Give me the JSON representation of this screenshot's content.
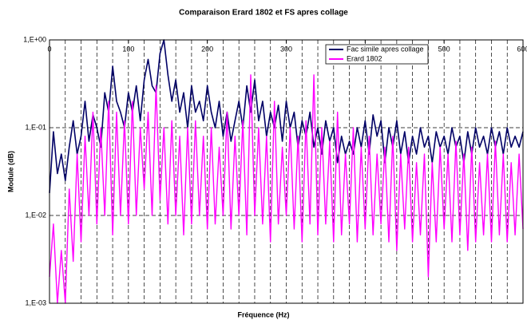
{
  "chart_data": {
    "type": "line",
    "title": "Comparaison Erard 1802 et FS apres collage",
    "x_label": "Fréquence (Hz)",
    "y_label": "Module (dB)",
    "log_y": true,
    "grid": true,
    "legend": "top-right",
    "xlim": [
      0,
      600
    ],
    "xticks": [
      0,
      100,
      200,
      300,
      400,
      500,
      600
    ],
    "xgrid": [
      0,
      20,
      40,
      60,
      80,
      100,
      120,
      140,
      160,
      180,
      200,
      220,
      240,
      260,
      280,
      300,
      320,
      340,
      360,
      380,
      400,
      420,
      440,
      460,
      480,
      500,
      520,
      540,
      560,
      580,
      600
    ],
    "ylim": [
      0.001,
      1
    ],
    "yticks": [
      {
        "value": 0.001,
        "label": "1,E-03"
      },
      {
        "value": 0.01,
        "label": "1,E-02"
      },
      {
        "value": 0.1,
        "label": "1,E-01"
      },
      {
        "value": 1,
        "label": "1,E+00"
      }
    ],
    "x": [
      0,
      5,
      10,
      15,
      20,
      25,
      30,
      35,
      40,
      45,
      50,
      55,
      60,
      65,
      70,
      75,
      80,
      85,
      90,
      95,
      100,
      105,
      110,
      115,
      120,
      125,
      130,
      135,
      140,
      145,
      150,
      155,
      160,
      165,
      170,
      175,
      180,
      185,
      190,
      195,
      200,
      205,
      210,
      215,
      220,
      225,
      230,
      235,
      240,
      245,
      250,
      255,
      260,
      265,
      270,
      275,
      280,
      285,
      290,
      295,
      300,
      305,
      310,
      315,
      320,
      325,
      330,
      335,
      340,
      345,
      350,
      355,
      360,
      365,
      370,
      375,
      380,
      385,
      390,
      395,
      400,
      405,
      410,
      415,
      420,
      425,
      430,
      435,
      440,
      445,
      450,
      455,
      460,
      465,
      470,
      475,
      480,
      485,
      490,
      495,
      500,
      505,
      510,
      515,
      520,
      525,
      530,
      535,
      540,
      545,
      550,
      555,
      560,
      565,
      570,
      575,
      580,
      585,
      590,
      595,
      600
    ],
    "series": [
      {
        "name": "Fac simile apres collage",
        "color": "#000066",
        "values": [
          0.018,
          0.09,
          0.03,
          0.05,
          0.025,
          0.06,
          0.12,
          0.05,
          0.08,
          0.2,
          0.07,
          0.14,
          0.1,
          0.06,
          0.25,
          0.15,
          0.5,
          0.2,
          0.15,
          0.1,
          0.25,
          0.15,
          0.3,
          0.12,
          0.35,
          0.6,
          0.3,
          0.25,
          0.7,
          1.0,
          0.4,
          0.2,
          0.35,
          0.15,
          0.25,
          0.1,
          0.3,
          0.15,
          0.2,
          0.12,
          0.3,
          0.15,
          0.1,
          0.2,
          0.08,
          0.15,
          0.07,
          0.12,
          0.2,
          0.1,
          0.3,
          0.15,
          0.35,
          0.12,
          0.2,
          0.08,
          0.15,
          0.1,
          0.18,
          0.07,
          0.2,
          0.1,
          0.15,
          0.06,
          0.12,
          0.08,
          0.15,
          0.06,
          0.1,
          0.05,
          0.12,
          0.07,
          0.1,
          0.04,
          0.08,
          0.05,
          0.07,
          0.05,
          0.1,
          0.06,
          0.12,
          0.05,
          0.14,
          0.08,
          0.12,
          0.04,
          0.1,
          0.06,
          0.12,
          0.05,
          0.09,
          0.04,
          0.08,
          0.05,
          0.1,
          0.06,
          0.08,
          0.04,
          0.09,
          0.06,
          0.08,
          0.05,
          0.1,
          0.06,
          0.08,
          0.04,
          0.09,
          0.05,
          0.1,
          0.06,
          0.08,
          0.05,
          0.1,
          0.06,
          0.09,
          0.05,
          0.1,
          0.06,
          0.08,
          0.06,
          0.09
        ]
      },
      {
        "name": "Erard 1802",
        "color": "#ff00ff",
        "values": [
          0.002,
          0.008,
          0.001,
          0.004,
          0.001,
          0.02,
          0.003,
          0.05,
          0.005,
          0.08,
          0.01,
          0.15,
          0.008,
          0.1,
          0.01,
          0.2,
          0.006,
          0.15,
          0.01,
          0.12,
          0.008,
          0.2,
          0.01,
          0.1,
          0.02,
          0.15,
          0.01,
          0.3,
          0.015,
          0.1,
          0.008,
          0.12,
          0.01,
          0.08,
          0.006,
          0.1,
          0.008,
          0.12,
          0.01,
          0.08,
          0.007,
          0.1,
          0.008,
          0.06,
          0.01,
          0.15,
          0.007,
          0.08,
          0.01,
          0.12,
          0.006,
          0.4,
          0.01,
          0.1,
          0.008,
          0.08,
          0.005,
          0.2,
          0.008,
          0.06,
          0.01,
          0.1,
          0.007,
          0.08,
          0.005,
          0.12,
          0.008,
          0.4,
          0.006,
          0.1,
          0.008,
          0.07,
          0.005,
          0.15,
          0.006,
          0.05,
          0.008,
          0.1,
          0.005,
          0.06,
          0.007,
          0.08,
          0.006,
          0.05,
          0.008,
          0.06,
          0.005,
          0.08,
          0.004,
          0.05,
          0.007,
          0.06,
          0.005,
          0.04,
          0.006,
          0.05,
          0.002,
          0.04,
          0.005,
          0.06,
          0.007,
          0.05,
          0.005,
          0.07,
          0.006,
          0.05,
          0.004,
          0.06,
          0.005,
          0.04,
          0.006,
          0.05,
          0.005,
          0.07,
          0.006,
          0.05,
          0.005,
          0.04,
          0.006,
          0.05,
          0.007
        ]
      }
    ]
  }
}
